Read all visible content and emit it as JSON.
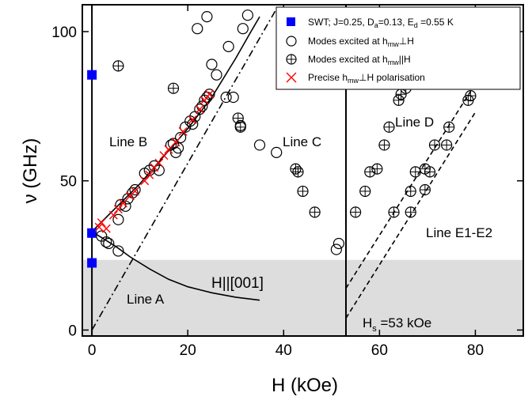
{
  "chart_data": {
    "type": "scatter",
    "title": "",
    "xlabel": "H (kOe)",
    "ylabel": "ν (GHz)",
    "xlim": [
      -2,
      90
    ],
    "ylim": [
      -2,
      109
    ],
    "xticks": [
      0,
      20,
      40,
      60,
      80
    ],
    "yticks": [
      0,
      50,
      100
    ],
    "grid": false,
    "legend_position": "top-right",
    "shaded_region_below_GHz": 23.5,
    "shade_color": "#dddddd",
    "vertical_lines_at": [
      0,
      53
    ],
    "annotations": {
      "line_a": "Line A",
      "line_b": "Line B",
      "line_c": "Line C",
      "line_d": "Line D",
      "line_e": "Line E1-E2",
      "h_direction": "H||[001]",
      "hs_prefix": "H",
      "hs_sub": "s",
      "hs_rest": " =53 kOe"
    },
    "legend": {
      "swt_main": "SWT; J=0.25, D",
      "swt_sub1": "a",
      "swt_mid": "=0.13, E",
      "swt_sub2": "d",
      "swt_end": " =0.55 K",
      "perp_main": "Modes excited at h",
      "perp_sub": "mw",
      "perp_end": "⊥H",
      "par_main": "Modes excited at h",
      "par_sub": "mw",
      "par_end": "||H",
      "precise_main": "Precise h",
      "precise_sub": "mw",
      "precise_end": "⊥H polarisation"
    },
    "series": [
      {
        "name": "SWT; J=0.25, Da=0.13, Ed =0.55 K",
        "marker": "square",
        "color": "#0000ff",
        "points": [
          [
            0,
            85.5
          ],
          [
            0,
            32.5
          ],
          [
            0,
            22.5
          ]
        ]
      },
      {
        "name": "Modes excited at hmw⊥H",
        "marker": "circle",
        "points": [
          [
            2,
            31.5
          ],
          [
            3,
            29.5
          ],
          [
            3.5,
            29
          ],
          [
            5.5,
            26.5
          ],
          [
            5.5,
            37
          ],
          [
            6,
            42
          ],
          [
            7,
            41.5
          ],
          [
            7.5,
            44
          ],
          [
            8.5,
            46
          ],
          [
            9,
            47
          ],
          [
            11,
            52.5
          ],
          [
            12,
            53.5
          ],
          [
            13,
            55
          ],
          [
            14,
            53.5
          ],
          [
            16.5,
            62
          ],
          [
            17,
            62.5
          ],
          [
            17.5,
            59.5
          ],
          [
            18,
            61
          ],
          [
            18.5,
            64.5
          ],
          [
            19.5,
            68
          ],
          [
            20.5,
            70
          ],
          [
            21,
            69
          ],
          [
            21.5,
            71.5
          ],
          [
            22.5,
            74
          ],
          [
            23,
            75
          ],
          [
            23.5,
            77
          ],
          [
            24,
            78
          ],
          [
            24.5,
            79
          ],
          [
            22,
            101
          ],
          [
            24,
            105
          ],
          [
            25,
            89
          ],
          [
            26,
            85.5
          ],
          [
            28,
            78
          ],
          [
            28.5,
            95
          ],
          [
            29.5,
            78
          ],
          [
            31.5,
            101
          ],
          [
            32.5,
            105.5
          ],
          [
            31,
            68.5
          ],
          [
            35,
            62
          ],
          [
            38.5,
            59.5
          ],
          [
            51,
            27
          ],
          [
            51.5,
            29
          ]
        ]
      },
      {
        "name": "Modes excited at hmw||H",
        "marker": "crossed-circle",
        "points": [
          [
            5.5,
            88.5
          ],
          [
            17,
            81
          ],
          [
            30.5,
            71
          ],
          [
            31,
            68
          ],
          [
            42.5,
            54
          ],
          [
            43,
            53
          ],
          [
            44,
            46.5
          ],
          [
            46.5,
            39.5
          ],
          [
            55,
            39.5
          ],
          [
            57,
            46.5
          ],
          [
            58,
            53
          ],
          [
            59.5,
            54
          ],
          [
            61,
            62
          ],
          [
            62,
            68
          ],
          [
            64,
            77
          ],
          [
            64.5,
            79
          ],
          [
            65.5,
            81
          ],
          [
            63,
            39.5
          ],
          [
            66.5,
            39.5
          ],
          [
            66.5,
            46.5
          ],
          [
            67.5,
            53
          ],
          [
            69.5,
            47
          ],
          [
            69.5,
            54
          ],
          [
            70.5,
            53
          ],
          [
            71.5,
            62
          ],
          [
            74,
            62
          ],
          [
            74.5,
            68
          ],
          [
            78.5,
            77
          ],
          [
            79,
            78.5
          ]
        ]
      },
      {
        "name": "Precise hmw⊥H polarisation",
        "marker": "x",
        "color": "#ff0000",
        "points": [
          [
            1.5,
            34.5
          ],
          [
            2,
            36
          ],
          [
            3,
            34
          ],
          [
            4.5,
            38.5
          ],
          [
            5.5,
            40.5
          ],
          [
            6.5,
            42.5
          ],
          [
            8,
            45
          ],
          [
            9,
            46.5
          ],
          [
            11,
            50
          ],
          [
            12,
            52
          ],
          [
            13,
            54.5
          ],
          [
            14,
            56
          ],
          [
            15,
            58.5
          ],
          [
            16,
            60.5
          ],
          [
            17.5,
            63
          ],
          [
            19,
            66.5
          ],
          [
            21,
            70.5
          ],
          [
            22.5,
            74
          ],
          [
            23.5,
            77
          ],
          [
            24.5,
            79
          ]
        ]
      }
    ],
    "lines": [
      {
        "name": "Line B",
        "style": "solid",
        "points": [
          [
            0,
            33
          ],
          [
            10,
            49
          ],
          [
            20,
            67.5
          ],
          [
            25,
            78
          ],
          [
            30,
            91
          ],
          [
            33,
            99.5
          ],
          [
            35,
            105
          ]
        ]
      },
      {
        "name": "Line A",
        "style": "solid",
        "points": [
          [
            0,
            33
          ],
          [
            5,
            28
          ],
          [
            8,
            24.5
          ],
          [
            12,
            20.5
          ],
          [
            16,
            17
          ],
          [
            20,
            14.5
          ],
          [
            25,
            12.5
          ],
          [
            30,
            11
          ],
          [
            35,
            10
          ]
        ]
      },
      {
        "name": "",
        "style": "dash-dot",
        "points": [
          [
            0,
            0
          ],
          [
            39,
            109
          ]
        ]
      },
      {
        "name": "Line E1",
        "style": "dashed",
        "points": [
          [
            53,
            14
          ],
          [
            79,
            80
          ]
        ]
      },
      {
        "name": "Line E2",
        "style": "dashed",
        "points": [
          [
            53,
            4
          ],
          [
            80,
            73
          ]
        ]
      }
    ]
  }
}
